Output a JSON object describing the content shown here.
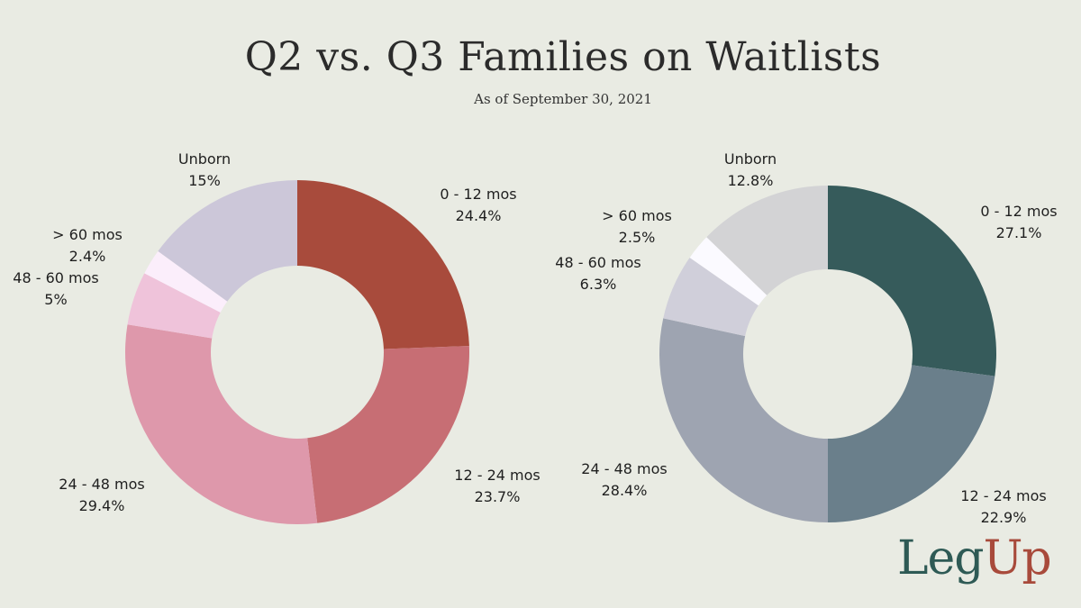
{
  "title": "Q2 vs. Q3 Families on Waitlists",
  "subtitle": "As of  September 30, 2021",
  "logo": {
    "part1": "Leg",
    "part2": "Up"
  },
  "chart_data": [
    {
      "type": "pie",
      "donut": true,
      "slices": [
        {
          "label": "0 - 12 mos",
          "value": 24.4,
          "value_text": "24.4%",
          "color": "#a84b3c"
        },
        {
          "label": "12 - 24 mos",
          "value": 23.7,
          "value_text": "23.7%",
          "color": "#c76e74"
        },
        {
          "label": "24 - 48 mos",
          "value": 29.4,
          "value_text": "29.4%",
          "color": "#de98ab"
        },
        {
          "label": "48 - 60 mos",
          "value": 5,
          "value_text": "5%",
          "color": "#efc3da"
        },
        {
          "label": "> 60 mos",
          "value": 2.4,
          "value_text": "2.4%",
          "color": "#fbeefb"
        },
        {
          "label": "Unborn",
          "value": 15,
          "value_text": "15%",
          "color": "#ccc7d9"
        }
      ]
    },
    {
      "type": "pie",
      "donut": true,
      "slices": [
        {
          "label": "0 - 12 mos",
          "value": 27.1,
          "value_text": "27.1%",
          "color": "#365b5b"
        },
        {
          "label": "12 - 24 mos",
          "value": 22.9,
          "value_text": "22.9%",
          "color": "#6a7f8b"
        },
        {
          "label": "24 - 48 mos",
          "value": 28.4,
          "value_text": "28.4%",
          "color": "#9ea4b1"
        },
        {
          "label": "48 - 60 mos",
          "value": 6.3,
          "value_text": "6.3%",
          "color": "#d0cfda"
        },
        {
          "label": "> 60 mos",
          "value": 2.5,
          "value_text": "2.5%",
          "color": "#fbfaff"
        },
        {
          "label": "Unborn",
          "value": 12.8,
          "value_text": "12.8%",
          "color": "#d3d3d5"
        }
      ]
    }
  ]
}
